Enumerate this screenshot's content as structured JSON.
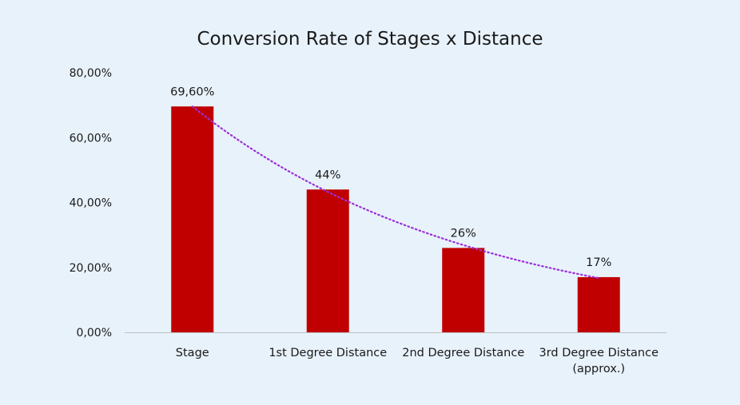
{
  "chart_data": {
    "type": "bar",
    "title": "Conversion Rate of Stages x Distance",
    "xlabel": "",
    "ylabel": "",
    "categories": [
      [
        "Stage"
      ],
      [
        "1st Degree Distance"
      ],
      [
        "2nd Degree Distance"
      ],
      [
        "3rd Degree Distance",
        "(approx.)"
      ]
    ],
    "values": [
      69.6,
      44,
      26,
      17
    ],
    "data_labels": [
      "69,60%",
      "44%",
      "26%",
      "17%"
    ],
    "ylim": [
      0,
      80
    ],
    "yticks": [
      0,
      20,
      40,
      60,
      80
    ],
    "ytick_labels": [
      "0,00%",
      "20,00%",
      "40,00%",
      "60,00%",
      "80,00%"
    ],
    "grid": false,
    "legend": "none",
    "trendline": {
      "type": "exponential",
      "style": "dotted",
      "color": "#9b30d9"
    },
    "colors": {
      "bar": "#c00000",
      "background": "#e8f2fb",
      "axis": "#bfbfbf"
    }
  }
}
